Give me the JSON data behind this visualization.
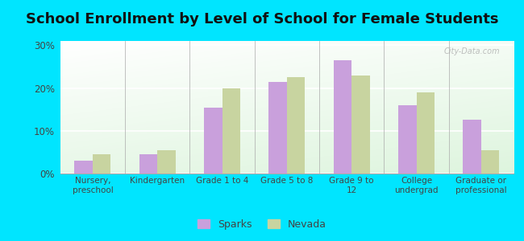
{
  "title": "School Enrollment by Level of School for Female Students",
  "categories": [
    "Nursery,\npreschool",
    "Kindergarten",
    "Grade 1 to 4",
    "Grade 5 to 8",
    "Grade 9 to\n12",
    "College\nundergrad",
    "Graduate or\nprofessional"
  ],
  "sparks": [
    3.0,
    4.5,
    15.5,
    21.5,
    26.5,
    16.0,
    12.5
  ],
  "nevada": [
    4.5,
    5.5,
    20.0,
    22.5,
    23.0,
    19.0,
    5.5
  ],
  "sparks_color": "#c9a0dc",
  "nevada_color": "#c8d4a0",
  "background_color": "#00e5ff",
  "title_fontsize": 13,
  "ylim": [
    0,
    31
  ],
  "yticks": [
    0,
    10,
    20,
    30
  ],
  "ytick_labels": [
    "0%",
    "10%",
    "20%",
    "30%"
  ],
  "watermark": "City-Data.com",
  "legend_labels": [
    "Sparks",
    "Nevada"
  ]
}
